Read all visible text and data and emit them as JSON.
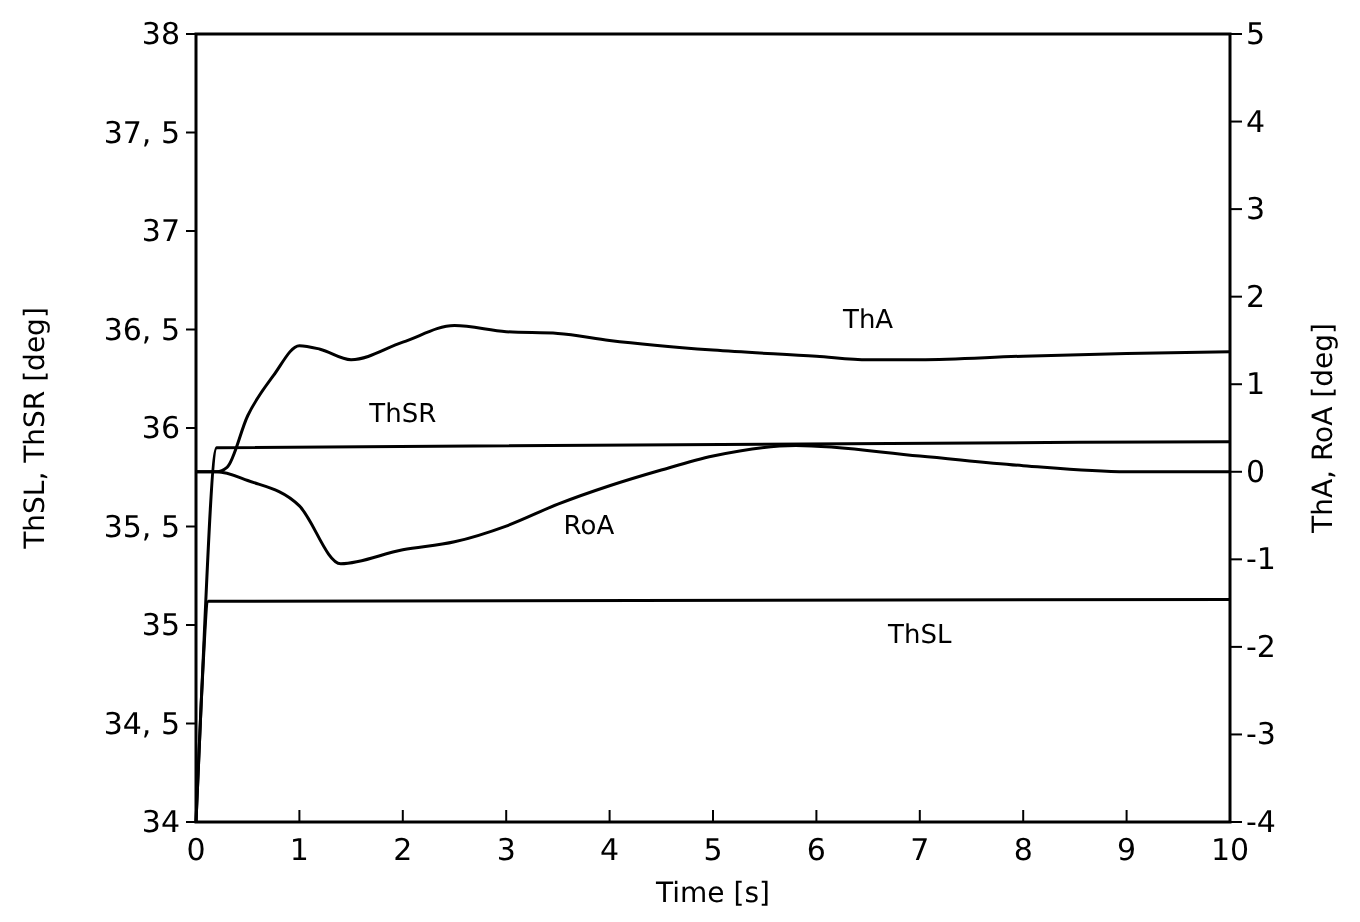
{
  "chart_data": {
    "type": "line",
    "xlabel": "Time [s]",
    "ylabel": "ThSL, ThSR [deg]",
    "y2label": "ThA, RoA [deg]",
    "xlim": [
      0,
      10
    ],
    "xticks": [
      0,
      1,
      2,
      3,
      4,
      5,
      6,
      7,
      8,
      9,
      10
    ],
    "ylim": [
      34,
      38
    ],
    "yticks": [
      34,
      {
        "value": 34.5,
        "label": "34, 5"
      },
      35,
      {
        "value": 35.5,
        "label": "35, 5"
      },
      36,
      {
        "value": 36.5,
        "label": "36, 5"
      },
      37,
      {
        "value": 37.5,
        "label": "37, 5"
      },
      38
    ],
    "y2lim": [
      -4,
      5
    ],
    "y2ticks": [
      -4,
      -3,
      -2,
      -1,
      0,
      1,
      2,
      3,
      4,
      5
    ],
    "grid": false,
    "marker": "none",
    "line_style": "solid",
    "series": [
      {
        "name": "ThSL",
        "color": "#000000",
        "x": [
          0,
          0.05,
          0.12,
          10
        ],
        "values": [
          34,
          34.6,
          35.12,
          35.13
        ]
      },
      {
        "name": "ThSR",
        "color": "#000000",
        "x": [
          0,
          0.05,
          0.2,
          10
        ],
        "values": [
          34,
          34.6,
          35.9,
          35.93
        ]
      },
      {
        "name": "ThA",
        "color": "#000000",
        "axis": "y2",
        "x": [
          0,
          0.2,
          0.3,
          0.5,
          0.75,
          1,
          1.2,
          1.5,
          2,
          2.5,
          3,
          3.5,
          4,
          5,
          6,
          6.5,
          7,
          8,
          9,
          10
        ],
        "values": [
          0,
          0,
          0.05,
          0.64,
          1.1,
          1.44,
          1.4,
          1.28,
          1.48,
          1.67,
          1.6,
          1.58,
          1.5,
          1.39,
          1.32,
          1.28,
          1.28,
          1.32,
          1.35,
          1.37
        ]
      },
      {
        "name": "RoA",
        "color": "#000000",
        "axis": "y2",
        "x": [
          0,
          0.2,
          0.5,
          1,
          1.4,
          2,
          2.5,
          3,
          3.5,
          4,
          4.5,
          5,
          5.8,
          7,
          8,
          9,
          10
        ],
        "values": [
          0,
          0,
          -0.1,
          -0.39,
          -1.05,
          -0.89,
          -0.8,
          -0.62,
          -0.37,
          -0.16,
          0.02,
          0.18,
          0.3,
          0.18,
          0.07,
          0,
          0
        ]
      }
    ]
  }
}
